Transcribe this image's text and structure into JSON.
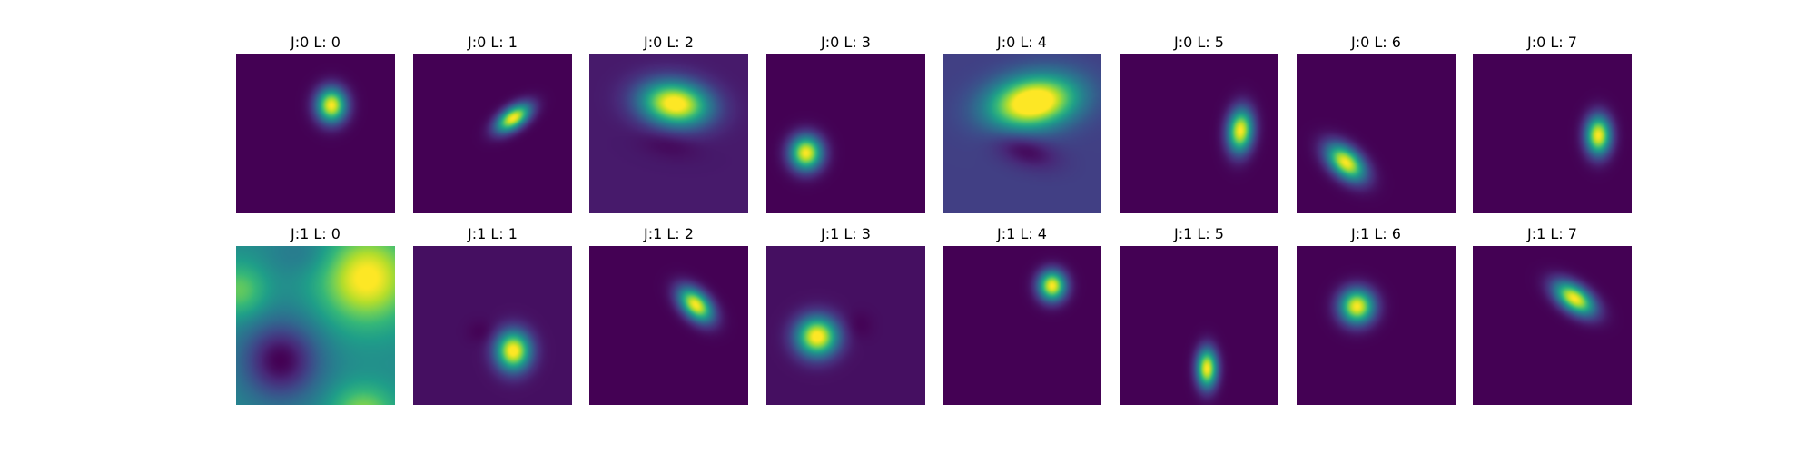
{
  "chart_data": {
    "type": "heatmap",
    "colormap": "viridis",
    "colormap_stops": [
      "#440154",
      "#482878",
      "#3e4989",
      "#31688e",
      "#26828e",
      "#1f9e89",
      "#35b779",
      "#6ece58",
      "#b5de2b",
      "#fde725"
    ],
    "grid": false,
    "panels": [
      {
        "title": "J:0 L: 0",
        "bg": 0.0,
        "blobs": [
          {
            "cx": 0.6,
            "cy": 0.32,
            "sx": 0.065,
            "sy": 0.075,
            "rot": 0,
            "amp": 1.0
          }
        ]
      },
      {
        "title": "J:0 L: 1",
        "bg": 0.0,
        "blobs": [
          {
            "cx": 0.63,
            "cy": 0.4,
            "sx": 0.085,
            "sy": 0.045,
            "rot": -35,
            "amp": 1.0
          }
        ]
      },
      {
        "title": "J:0 L: 2",
        "bg": 0.07,
        "blobs": [
          {
            "cx": 0.54,
            "cy": 0.31,
            "sx": 0.15,
            "sy": 0.095,
            "rot": 8,
            "amp": 1.0
          },
          {
            "cx": 0.5,
            "cy": 0.56,
            "sx": 0.13,
            "sy": 0.06,
            "rot": 10,
            "amp": -0.06
          }
        ]
      },
      {
        "title": "J:0 L: 3",
        "bg": 0.0,
        "blobs": [
          {
            "cx": 0.25,
            "cy": 0.62,
            "sx": 0.07,
            "sy": 0.075,
            "rot": 0,
            "amp": 1.0
          }
        ]
      },
      {
        "title": "J:0 L: 4",
        "bg": 0.19,
        "blobs": [
          {
            "cx": 0.57,
            "cy": 0.3,
            "sx": 0.19,
            "sy": 0.11,
            "rot": -10,
            "amp": 1.0
          },
          {
            "cx": 0.52,
            "cy": 0.6,
            "sx": 0.14,
            "sy": 0.07,
            "rot": 18,
            "amp": -0.18
          }
        ]
      },
      {
        "title": "J:0 L: 5",
        "bg": 0.0,
        "blobs": [
          {
            "cx": 0.76,
            "cy": 0.48,
            "sx": 0.055,
            "sy": 0.095,
            "rot": 5,
            "amp": 1.0
          }
        ]
      },
      {
        "title": "J:0 L: 6",
        "bg": 0.0,
        "blobs": [
          {
            "cx": 0.31,
            "cy": 0.68,
            "sx": 0.1,
            "sy": 0.06,
            "rot": 42,
            "amp": 1.0
          }
        ]
      },
      {
        "title": "J:0 L: 7",
        "bg": 0.0,
        "blobs": [
          {
            "cx": 0.79,
            "cy": 0.51,
            "sx": 0.055,
            "sy": 0.085,
            "rot": 0,
            "amp": 1.0
          }
        ]
      },
      {
        "title": "J:1 L: 0",
        "bg": 0.48,
        "blobs": [
          {
            "cx": 0.82,
            "cy": 0.2,
            "sx": 0.2,
            "sy": 0.2,
            "rot": 0,
            "amp": 0.55
          },
          {
            "cx": 0.28,
            "cy": 0.72,
            "sx": 0.17,
            "sy": 0.17,
            "rot": 0,
            "amp": -0.48
          },
          {
            "cx": 0.02,
            "cy": 0.28,
            "sx": 0.12,
            "sy": 0.12,
            "rot": 0,
            "amp": 0.28
          },
          {
            "cx": 0.8,
            "cy": 1.05,
            "sx": 0.14,
            "sy": 0.12,
            "rot": 0,
            "amp": 0.35
          },
          {
            "cx": 0.45,
            "cy": 0.05,
            "sx": 0.16,
            "sy": 0.1,
            "rot": 0,
            "amp": -0.1
          }
        ]
      },
      {
        "title": "J:1 L: 1",
        "bg": 0.04,
        "blobs": [
          {
            "cx": 0.63,
            "cy": 0.66,
            "sx": 0.075,
            "sy": 0.085,
            "rot": 0,
            "amp": 1.0
          },
          {
            "cx": 0.43,
            "cy": 0.54,
            "sx": 0.06,
            "sy": 0.05,
            "rot": 0,
            "amp": -0.04
          }
        ]
      },
      {
        "title": "J:1 L: 2",
        "bg": 0.0,
        "blobs": [
          {
            "cx": 0.67,
            "cy": 0.37,
            "sx": 0.09,
            "sy": 0.055,
            "rot": 45,
            "amp": 1.0
          }
        ]
      },
      {
        "title": "J:1 L: 3",
        "bg": 0.04,
        "blobs": [
          {
            "cx": 0.32,
            "cy": 0.57,
            "sx": 0.09,
            "sy": 0.085,
            "rot": 0,
            "amp": 1.0
          },
          {
            "cx": 0.58,
            "cy": 0.5,
            "sx": 0.06,
            "sy": 0.06,
            "rot": 0,
            "amp": -0.04
          }
        ]
      },
      {
        "title": "J:1 L: 4",
        "bg": 0.0,
        "blobs": [
          {
            "cx": 0.69,
            "cy": 0.25,
            "sx": 0.06,
            "sy": 0.065,
            "rot": 0,
            "amp": 1.0
          }
        ]
      },
      {
        "title": "J:1 L: 5",
        "bg": 0.0,
        "blobs": [
          {
            "cx": 0.55,
            "cy": 0.77,
            "sx": 0.045,
            "sy": 0.085,
            "rot": 0,
            "amp": 1.0
          }
        ]
      },
      {
        "title": "J:1 L: 6",
        "bg": 0.0,
        "blobs": [
          {
            "cx": 0.38,
            "cy": 0.38,
            "sx": 0.075,
            "sy": 0.075,
            "rot": 0,
            "amp": 1.0
          }
        ]
      },
      {
        "title": "J:1 L: 7",
        "bg": 0.0,
        "blobs": [
          {
            "cx": 0.64,
            "cy": 0.33,
            "sx": 0.1,
            "sy": 0.055,
            "rot": 35,
            "amp": 1.0
          }
        ]
      }
    ]
  }
}
